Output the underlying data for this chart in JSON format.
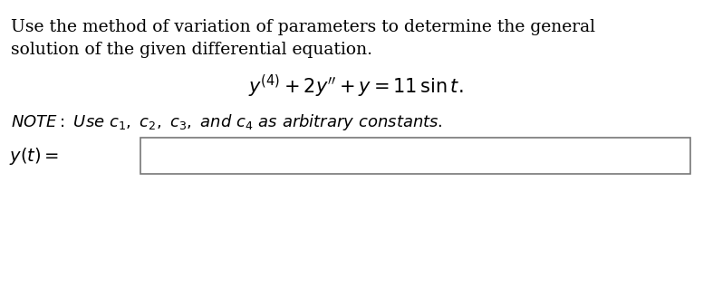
{
  "bg_color": "#ffffff",
  "text_color": "#000000",
  "line1": "Use the method of variation of parameters to determine the general",
  "line2": "solution of the given differential equation.",
  "equation": "$y^{(4)} + 2y'' + y = 11\\,\\sin t.$",
  "label_yt": "$y(t) =$",
  "font_size_text": 13.5,
  "font_size_eq": 15,
  "font_size_note": 13,
  "font_size_label": 14
}
